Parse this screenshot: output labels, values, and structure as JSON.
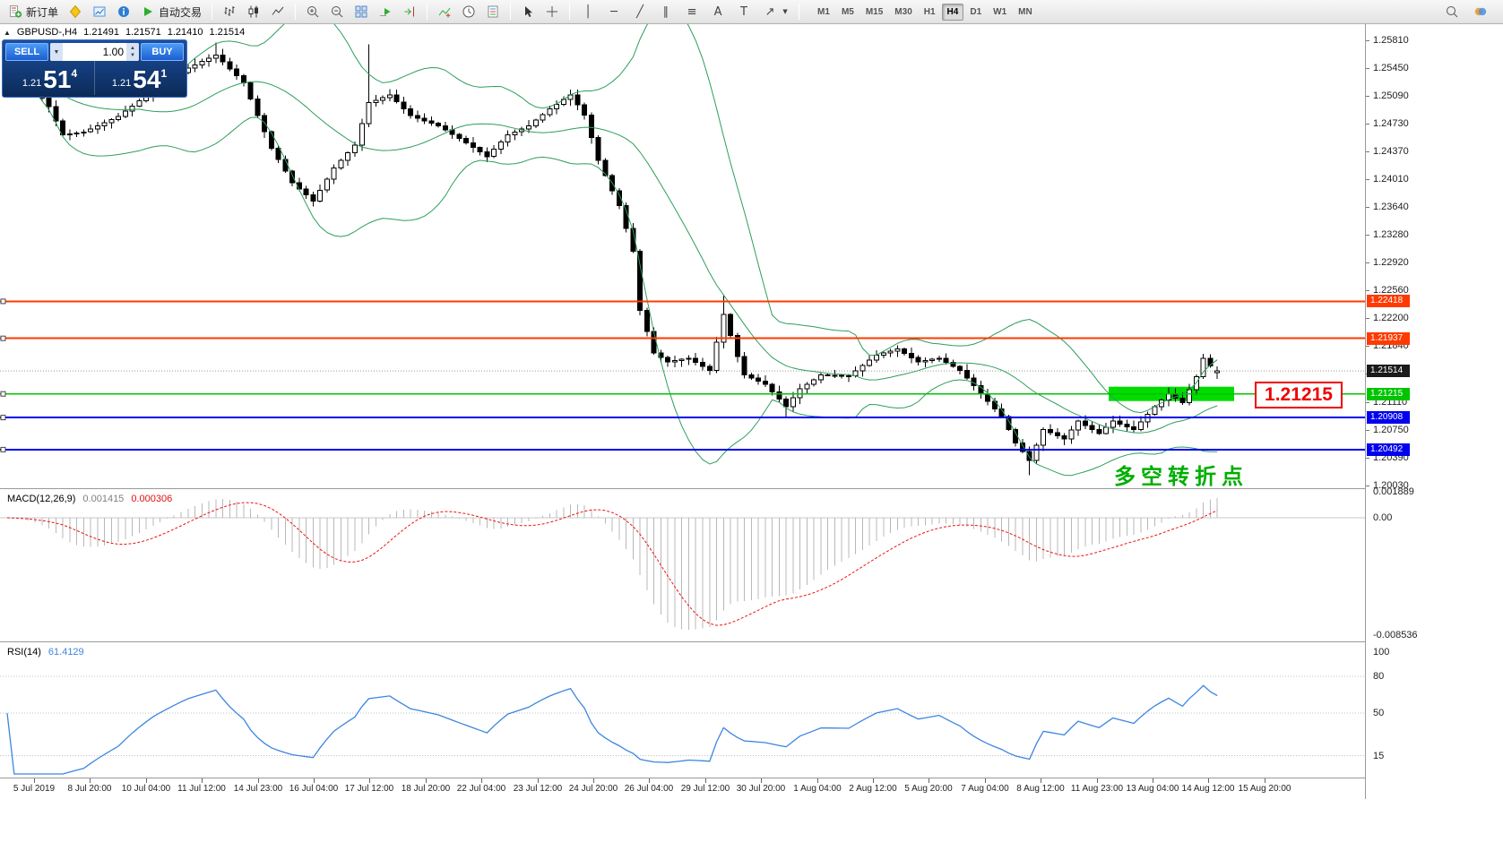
{
  "toolbar": {
    "new_order_label": "新订单",
    "autotrading_label": "自动交易",
    "timeframes": [
      "M1",
      "M5",
      "M15",
      "M30",
      "H1",
      "H4",
      "D1",
      "W1",
      "MN"
    ],
    "active_timeframe": "H4"
  },
  "chart": {
    "header": {
      "symbol": "GBPUSD-,H4",
      "open": "1.21491",
      "high": "1.21571",
      "low": "1.21410",
      "close": "1.21514"
    },
    "trade_panel": {
      "sell_label": "SELL",
      "buy_label": "BUY",
      "volume": "1.00",
      "sell_price": {
        "prefix": "1.21",
        "big": "51",
        "sup": "4"
      },
      "buy_price": {
        "prefix": "1.21",
        "big": "54",
        "sup": "1"
      }
    },
    "price_axis": [
      "1.25810",
      "1.25450",
      "1.25090",
      "1.24730",
      "1.24370",
      "1.24010",
      "1.23640",
      "1.23280",
      "1.22920",
      "1.22560",
      "1.22200",
      "1.21840",
      "1.21480",
      "1.21110",
      "1.20750",
      "1.20390",
      "1.20030"
    ],
    "levels": [
      {
        "label": "1.22418",
        "value": 1.22418,
        "color": "#FF3A00",
        "width": 2
      },
      {
        "label": "1.21937",
        "value": 1.21937,
        "color": "#FF3A00",
        "width": 2
      },
      {
        "label": "1.21215",
        "value": 1.21215,
        "color": "#00C400",
        "width": 1.6
      },
      {
        "label": "1.20908",
        "value": 1.20908,
        "color": "#0000EE",
        "width": 2
      },
      {
        "label": "1.20492",
        "value": 1.20492,
        "color": "#0000EE",
        "width": 2
      }
    ],
    "current_price": {
      "label": "1.21514",
      "value": 1.21514
    },
    "annotations": {
      "support_callout": "1.21215",
      "turning_point": "多空转折点"
    },
    "highlight_zone": {
      "price": 1.21215,
      "label": "1.21215"
    }
  },
  "macd": {
    "title": "MACD(12,26,9)",
    "main_value": "0.001415",
    "signal_value": "0.000306",
    "axis": [
      {
        "label": "0.001889",
        "value": 0.001889
      },
      {
        "label": "0.00",
        "value": 0
      },
      {
        "label": "-0.008536",
        "value": -0.008536
      }
    ]
  },
  "rsi": {
    "title": "RSI(14)",
    "value": "61.4129",
    "axis": [
      {
        "label": "100",
        "value": 100
      },
      {
        "label": "80",
        "value": 80
      },
      {
        "label": "50",
        "value": 50
      },
      {
        "label": "15",
        "value": 15
      }
    ],
    "levels": [
      80,
      50,
      15
    ]
  },
  "time_axis": [
    "5 Jul 2019",
    "8 Jul 20:00",
    "10 Jul 04:00",
    "11 Jul 12:00",
    "14 Jul 23:00",
    "16 Jul 04:00",
    "17 Jul 12:00",
    "18 Jul 20:00",
    "22 Jul 04:00",
    "23 Jul 12:00",
    "24 Jul 20:00",
    "26 Jul 04:00",
    "29 Jul 12:00",
    "30 Jul 20:00",
    "1 Aug 04:00",
    "2 Aug 12:00",
    "5 Aug 20:00",
    "7 Aug 04:00",
    "8 Aug 12:00",
    "11 Aug 23:00",
    "13 Aug 04:00",
    "14 Aug 12:00",
    "15 Aug 20:00"
  ],
  "chart_data": {
    "type": "candlestick",
    "symbol": "GBPUSD-",
    "timeframe": "H4",
    "last_ohlc": {
      "open": 1.21491,
      "high": 1.21571,
      "low": 1.2141,
      "close": 1.21514
    },
    "candle_count": 175,
    "price_range": [
      1.1997,
      1.2602
    ],
    "close_path": [
      [
        0,
        1.2542
      ],
      [
        3,
        1.2528
      ],
      [
        6,
        1.2495
      ],
      [
        8,
        1.2458
      ],
      [
        11,
        1.2462
      ],
      [
        16,
        1.2482
      ],
      [
        21,
        1.2516
      ],
      [
        26,
        1.2545
      ],
      [
        30,
        1.2562
      ],
      [
        34,
        1.2526
      ],
      [
        38,
        1.2441
      ],
      [
        41,
        1.2396
      ],
      [
        44,
        1.2372
      ],
      [
        47,
        1.2415
      ],
      [
        50,
        1.2445
      ],
      [
        52,
        1.25
      ],
      [
        55,
        1.251
      ],
      [
        58,
        1.2483
      ],
      [
        62,
        1.247
      ],
      [
        66,
        1.2448
      ],
      [
        69,
        1.243
      ],
      [
        72,
        1.2458
      ],
      [
        75,
        1.247
      ],
      [
        78,
        1.2492
      ],
      [
        81,
        1.251
      ],
      [
        83,
        1.2484
      ],
      [
        85,
        1.2425
      ],
      [
        88,
        1.2366
      ],
      [
        90,
        1.2307
      ],
      [
        91,
        1.223
      ],
      [
        93,
        1.2175
      ],
      [
        95,
        1.2163
      ],
      [
        98,
        1.2168
      ],
      [
        101,
        1.2152
      ],
      [
        103,
        1.2225
      ],
      [
        105,
        1.217
      ],
      [
        106,
        1.2146
      ],
      [
        109,
        1.2134
      ],
      [
        112,
        1.2105
      ],
      [
        114,
        1.2128
      ],
      [
        117,
        1.2146
      ],
      [
        121,
        1.2145
      ],
      [
        125,
        1.2172
      ],
      [
        128,
        1.218
      ],
      [
        131,
        1.2163
      ],
      [
        134,
        1.2168
      ],
      [
        137,
        1.2152
      ],
      [
        140,
        1.2122
      ],
      [
        143,
        1.2092
      ],
      [
        145,
        1.2058
      ],
      [
        147,
        1.2035
      ],
      [
        149,
        1.2075
      ],
      [
        152,
        1.2063
      ],
      [
        154,
        1.2086
      ],
      [
        157,
        1.207
      ],
      [
        159,
        1.2086
      ],
      [
        162,
        1.2075
      ],
      [
        165,
        1.2105
      ],
      [
        167,
        1.2122
      ],
      [
        169,
        1.211
      ],
      [
        171,
        1.2144
      ],
      [
        172,
        1.2168
      ],
      [
        173,
        1.2158
      ],
      [
        174,
        1.21514
      ]
    ],
    "spikes": [
      {
        "i": 30,
        "high": 1.2578
      },
      {
        "i": 52,
        "high": 1.2576
      },
      {
        "i": 103,
        "high": 1.2249
      },
      {
        "i": 112,
        "low": 1.209
      },
      {
        "i": 147,
        "low": 1.2016
      }
    ],
    "indicators": {
      "bollinger": {
        "period": 20,
        "deviation": 2
      },
      "macd": {
        "fast": 12,
        "slow": 26,
        "signal": 9,
        "current_main": 0.001415,
        "current_signal": 0.000306,
        "axis_max": 0.001889,
        "axis_min": -0.008536
      },
      "rsi": {
        "period": 14,
        "current": 61.4129
      }
    },
    "horizontal_levels": [
      1.22418,
      1.21937,
      1.21215,
      1.20908,
      1.20492
    ]
  },
  "colors": {
    "bollinger": "#2E9E5B",
    "resistance_line": "#FF3A00",
    "support_line_green": "#00C400",
    "support_line_blue": "#0000EE",
    "highlight_zone": "#00DC00",
    "callout_red": "#EE0000",
    "annotation_green": "#00AE00",
    "macd_histogram": "#B8B8B8",
    "macd_signal": "#EE1111",
    "rsi_line": "#3D85E0",
    "current_price_tag": "#1A1A1A",
    "panel_blue": "#1B5FD0"
  }
}
